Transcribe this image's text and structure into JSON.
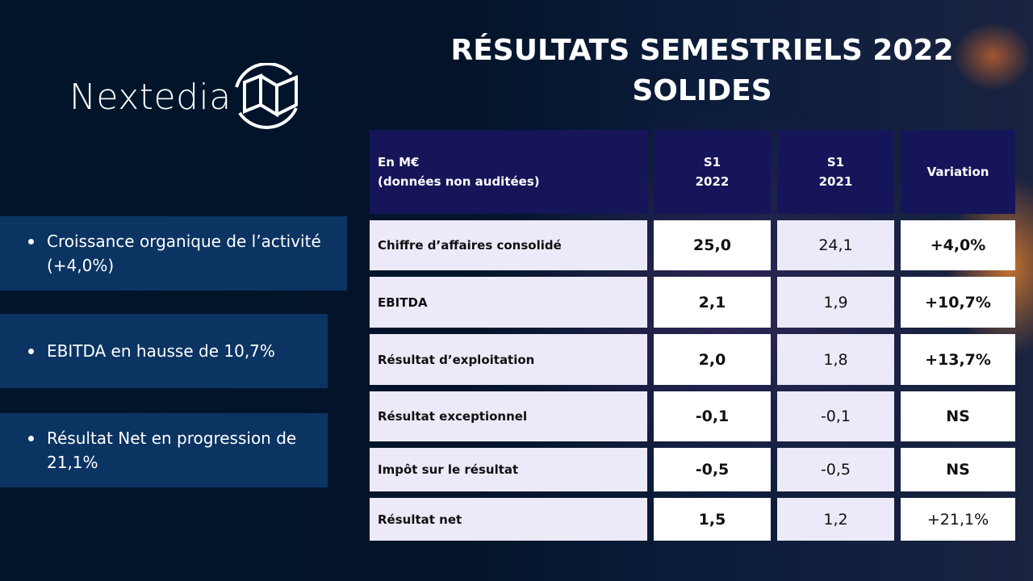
{
  "logo": {
    "text": "Nextedia"
  },
  "title": {
    "line1": "RÉSULTATS SEMESTRIELS 2022",
    "line2": "SOLIDES"
  },
  "bullets": [
    "Croissance organique de l’activité (+4,0%)",
    "EBITDA en hausse de 10,7%",
    "Résultat Net en progression de 21,1%"
  ],
  "table": {
    "header": {
      "label_line1": "En M€",
      "label_line2": "(données non auditées)",
      "col1_line1": "S1",
      "col1_line2": "2022",
      "col2_line1": "S1",
      "col2_line2": "2021",
      "col3": "Variation"
    },
    "rows": [
      {
        "label": "Chiffre d’affaires consolidé",
        "s1_2022": "25,0",
        "s1_2021": "24,1",
        "variation": "+4,0%"
      },
      {
        "label": "EBITDA",
        "s1_2022": "2,1",
        "s1_2021": "1,9",
        "variation": "+10,7%"
      },
      {
        "label": "Résultat d’exploitation",
        "s1_2022": "2,0",
        "s1_2021": "1,8",
        "variation": "+13,7%"
      },
      {
        "label": "Résultat exceptionnel",
        "s1_2022": "-0,1",
        "s1_2021": "-0,1",
        "variation": "NS"
      },
      {
        "label": "Impôt sur le résultat",
        "s1_2022": "-0,5",
        "s1_2021": "-0,5",
        "variation": "NS"
      },
      {
        "label": "Résultat net",
        "s1_2022": "1,5",
        "s1_2021": "1,2",
        "variation": "+21,1%"
      }
    ]
  },
  "colors": {
    "header_bg": "#16155a",
    "bullet_bg": "#0b3463",
    "light_cell": "#eceaf9"
  }
}
